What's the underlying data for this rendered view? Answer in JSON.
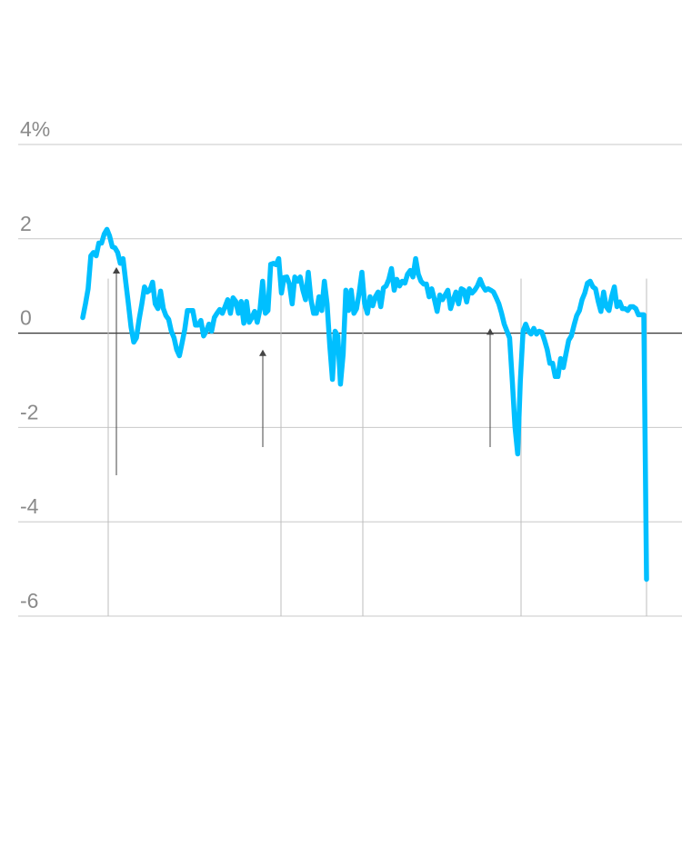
{
  "chart_data": {
    "type": "line",
    "title": "",
    "xlabel": "",
    "ylabel": "",
    "ylim": [
      -6,
      4
    ],
    "yticks": [
      4,
      2,
      0,
      -2,
      -4,
      -6
    ],
    "ytick_labels": [
      "4%",
      "2",
      "0",
      "-2",
      "-4",
      "-6"
    ],
    "grid": "horizontal",
    "line_color": "#00bfff",
    "series": [
      {
        "values": [
          0.33,
          0.62,
          0.94,
          1.64,
          1.71,
          1.64,
          1.91,
          1.91,
          2.1,
          2.2,
          2.06,
          1.83,
          1.81,
          1.71,
          1.48,
          1.58,
          1.1,
          0.62,
          0.13,
          -0.19,
          -0.1,
          0.29,
          0.62,
          0.98,
          0.87,
          0.91,
          1.08,
          0.62,
          0.52,
          0.89,
          0.52,
          0.37,
          0.29,
          0.04,
          -0.1,
          -0.35,
          -0.48,
          -0.21,
          0.08,
          0.48,
          0.48,
          0.48,
          0.17,
          0.17,
          0.27,
          -0.06,
          0.04,
          0.19,
          0.04,
          0.33,
          0.42,
          0.5,
          0.42,
          0.56,
          0.71,
          0.42,
          0.75,
          0.67,
          0.42,
          0.67,
          0.21,
          0.67,
          0.23,
          0.33,
          0.46,
          0.23,
          0.5,
          1.1,
          0.42,
          0.48,
          1.46,
          1.48,
          1.45,
          1.58,
          0.85,
          1.18,
          1.19,
          1.04,
          0.62,
          1.19,
          1.1,
          1.19,
          0.91,
          0.71,
          1.29,
          0.71,
          0.42,
          0.42,
          0.77,
          0.48,
          1.1,
          0.62,
          -0.25,
          -0.98,
          0.04,
          -0.06,
          -1.08,
          -0.44,
          0.91,
          0.48,
          0.91,
          0.42,
          0.52,
          0.87,
          1.29,
          0.62,
          0.42,
          0.77,
          0.58,
          0.77,
          0.87,
          0.56,
          0.96,
          1.0,
          1.14,
          1.37,
          0.91,
          1.14,
          1.0,
          1.1,
          1.06,
          1.25,
          1.33,
          1.19,
          1.58,
          1.25,
          1.1,
          1.04,
          1.04,
          0.77,
          0.94,
          0.71,
          0.46,
          0.81,
          0.71,
          0.81,
          0.91,
          0.52,
          0.71,
          0.87,
          0.62,
          0.94,
          0.91,
          0.66,
          0.94,
          0.85,
          0.91,
          1.0,
          1.14,
          1.0,
          0.91,
          0.94,
          0.91,
          0.87,
          0.75,
          0.62,
          0.42,
          0.19,
          0.04,
          -0.1,
          -1.02,
          -1.98,
          -2.56,
          -1.02,
          0.04,
          0.19,
          0.04,
          -0.02,
          0.1,
          -0.02,
          0.04,
          0.02,
          -0.15,
          -0.35,
          -0.64,
          -0.64,
          -0.92,
          -0.92,
          -0.54,
          -0.73,
          -0.44,
          -0.15,
          -0.06,
          0.17,
          0.37,
          0.48,
          0.71,
          0.85,
          1.06,
          1.1,
          0.98,
          0.94,
          0.67,
          0.46,
          0.87,
          0.56,
          0.48,
          0.77,
          0.98,
          0.56,
          0.66,
          0.52,
          0.52,
          0.48,
          0.56,
          0.56,
          0.52,
          0.39,
          0.39,
          0.39,
          -5.22
        ]
      }
    ],
    "annotations": [
      {
        "type": "arrow",
        "target_value": 1.4
      },
      {
        "type": "arrow",
        "target_value": -0.35
      },
      {
        "type": "arrow",
        "target_value": 0.1
      }
    ]
  }
}
